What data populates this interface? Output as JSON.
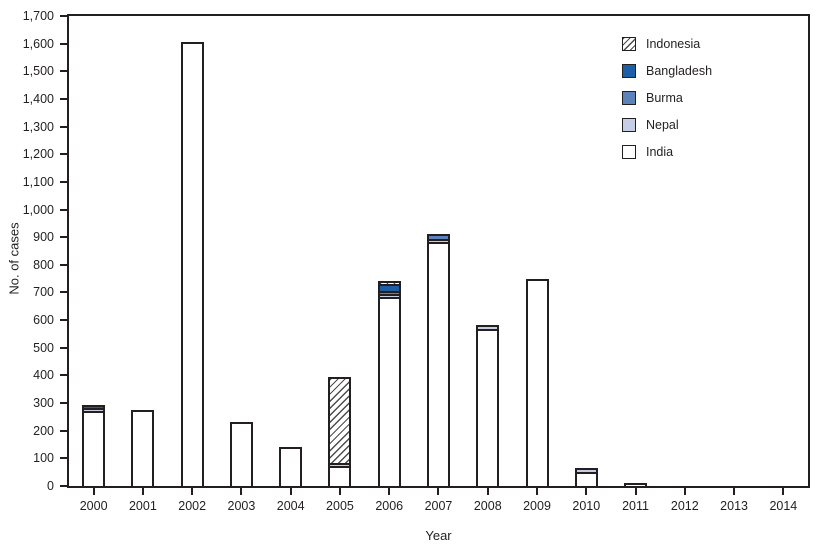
{
  "chart_data": {
    "type": "bar",
    "stacked": true,
    "title": "",
    "xlabel": "Year",
    "ylabel": "No. of cases",
    "ylim": [
      0,
      1700
    ],
    "ytick_step": 100,
    "grid": false,
    "plot_border": "full-box",
    "categories": [
      "2000",
      "2001",
      "2002",
      "2003",
      "2004",
      "2005",
      "2006",
      "2007",
      "2008",
      "2009",
      "2010",
      "2011",
      "2012",
      "2013",
      "2014"
    ],
    "series_stack_order_bottom_to_top": [
      "India",
      "Nepal",
      "Burma",
      "Bangladesh",
      "Indonesia"
    ],
    "series": [
      {
        "name": "India",
        "swatch": "solid",
        "color": "#ffffff",
        "values": [
          265,
          268,
          1600,
          225,
          134,
          66,
          676,
          874,
          559,
          741,
          42,
          1,
          0,
          0,
          0
        ]
      },
      {
        "name": "Nepal",
        "swatch": "solid",
        "color": "#c6cee5",
        "values": [
          4,
          0,
          0,
          0,
          0,
          4,
          5,
          5,
          6,
          0,
          6,
          0,
          0,
          0,
          0
        ]
      },
      {
        "name": "Burma",
        "swatch": "solid",
        "color": "#5d82ba",
        "values": [
          0,
          0,
          0,
          0,
          0,
          0,
          1,
          11,
          0,
          0,
          0,
          0,
          0,
          0,
          0
        ]
      },
      {
        "name": "Bangladesh",
        "swatch": "solid",
        "color": "#1d5fa6",
        "values": [
          1,
          0,
          0,
          0,
          0,
          0,
          18,
          0,
          0,
          0,
          0,
          0,
          0,
          0,
          0
        ]
      },
      {
        "name": "Indonesia",
        "swatch": "hatch",
        "color": "#ffffff",
        "values": [
          0,
          0,
          0,
          0,
          0,
          303,
          2,
          0,
          0,
          0,
          0,
          0,
          0,
          0,
          0
        ]
      }
    ],
    "bar_totals": [
      270,
      268,
      1600,
      225,
      134,
      373,
      702,
      890,
      565,
      741,
      48,
      1,
      0,
      0,
      0
    ],
    "legend": {
      "position": "top-right-inside",
      "entries": [
        "Indonesia",
        "Bangladesh",
        "Burma",
        "Nepal",
        "India"
      ]
    }
  },
  "colors": {
    "axis": "#231f20",
    "text": "#231f20",
    "background": "#ffffff",
    "india": "#ffffff",
    "nepal": "#c6cee5",
    "burma": "#5d82ba",
    "bangladesh": "#1d5fa6",
    "hatch_line": "#4d4d4d"
  }
}
